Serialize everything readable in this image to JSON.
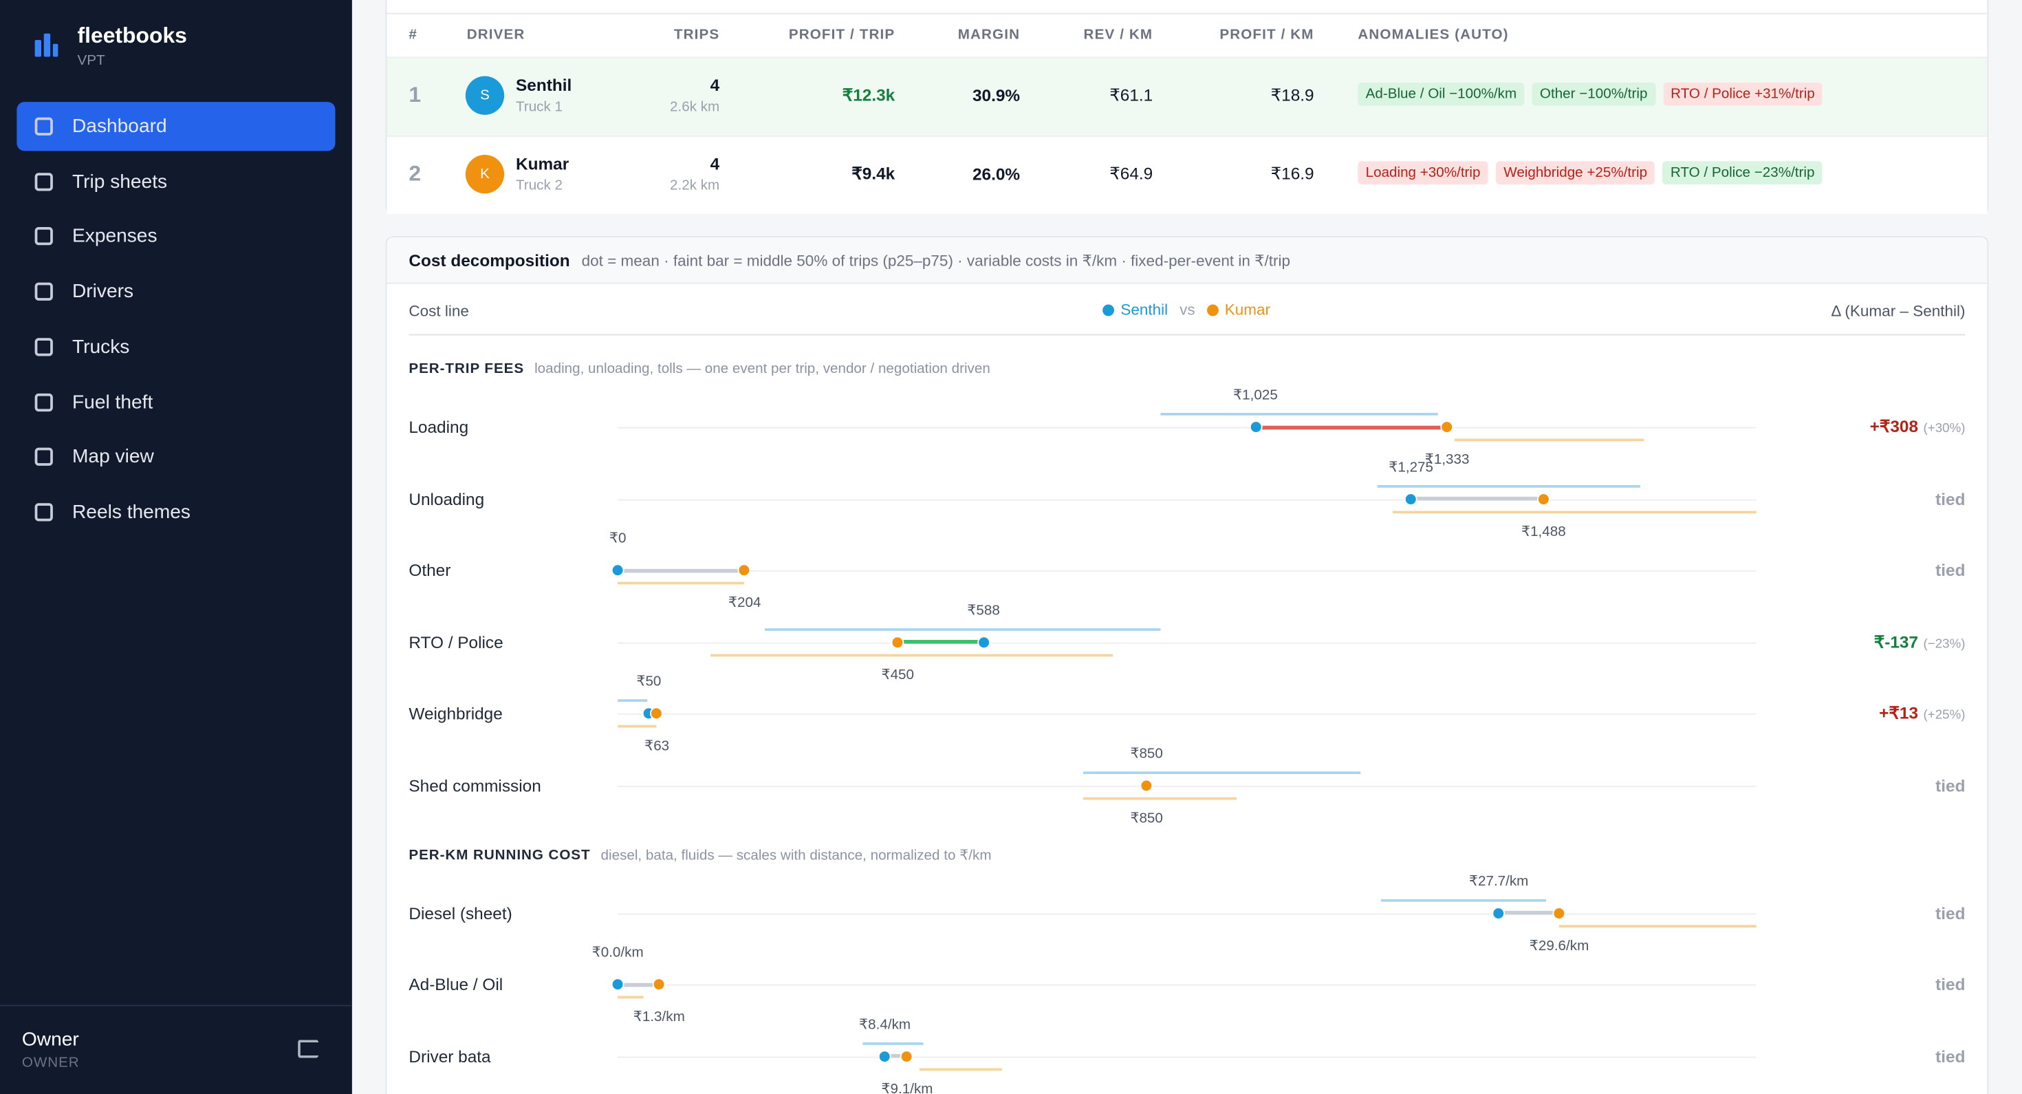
{
  "sidebar": {
    "brand": "fleetbooks",
    "org": "VPT",
    "nav": [
      "Dashboard",
      "Trip sheets",
      "Expenses",
      "Drivers",
      "Trucks",
      "Fuel theft",
      "Map view",
      "Reels themes"
    ],
    "active": 0,
    "user": {
      "name": "Owner",
      "role": "OWNER"
    }
  },
  "table": {
    "columns": [
      "#",
      "DRIVER",
      "TRIPS",
      "PROFIT / TRIP",
      "MARGIN",
      "REV / KM",
      "PROFIT / KM",
      "ANOMALIES (AUTO)"
    ],
    "rows": [
      {
        "rank": 1,
        "initial": "S",
        "avatar_color": "#1a9ad8",
        "name": "Senthil",
        "truck": "Truck 1",
        "trips": 4,
        "distance": "2.6k km",
        "profit_trip": "₹12.3k",
        "profit_color": "#15803d",
        "margin": "30.9%",
        "rev_km": "₹61.1",
        "profit_km": "₹18.9",
        "highlight": true,
        "anomalies": [
          {
            "text": "Ad-Blue / Oil −100%/km",
            "tone": "good"
          },
          {
            "text": "Other −100%/trip",
            "tone": "good"
          },
          {
            "text": "RTO / Police +31%/trip",
            "tone": "bad"
          }
        ]
      },
      {
        "rank": 2,
        "initial": "K",
        "avatar_color": "#f0920f",
        "name": "Kumar",
        "truck": "Truck 2",
        "trips": 4,
        "distance": "2.2k km",
        "profit_trip": "₹9.4k",
        "profit_color": "#111827",
        "margin": "26.0%",
        "rev_km": "₹64.9",
        "profit_km": "₹16.9",
        "highlight": false,
        "anomalies": [
          {
            "text": "Loading +30%/trip",
            "tone": "bad"
          },
          {
            "text": "Weighbridge +25%/trip",
            "tone": "bad"
          },
          {
            "text": "RTO / Police −23%/trip",
            "tone": "good"
          }
        ]
      }
    ]
  },
  "cost": {
    "title": "Cost decomposition",
    "note": "dot = mean · faint bar = middle 50% of trips (p25–p75) · variable costs in ₹/km · fixed-per-event in ₹/trip",
    "column_label": "Cost line",
    "legend": [
      {
        "name": "Senthil",
        "color": "#1a9ad8"
      },
      {
        "name": "Kumar",
        "color": "#f0920f"
      }
    ],
    "legend_sep": "vs",
    "delta_label": "Δ (Kumar – Senthil)",
    "sections": [
      {
        "title": "PER-TRIP FEES",
        "desc": "loading, unloading, tolls — one event per trip, vendor / negotiation driven",
        "xlim": [
          0,
          1830
        ],
        "rows": [
          {
            "name": "Loading",
            "a": {
              "value": 1025,
              "label": "₹1,025",
              "p25": 873,
              "p75": 1318
            },
            "b": {
              "value": 1333,
              "label": "₹1,333",
              "p25": 1345,
              "p75": 1650
            },
            "delta": "+₹308",
            "delta_pct": "(+30%)",
            "tone": "bad"
          },
          {
            "name": "Unloading",
            "a": {
              "value": 1275,
              "label": "₹1,275",
              "p25": 1221,
              "p75": 1643
            },
            "b": {
              "value": 1488,
              "label": "₹1,488",
              "p25": 1246,
              "p75": 1830
            },
            "delta": "tied",
            "tone": "tied"
          },
          {
            "name": "Other",
            "a": {
              "value": 0,
              "label": "₹0",
              "p25": 0,
              "p75": 0
            },
            "b": {
              "value": 204,
              "label": "₹204",
              "p25": 0,
              "p75": 204
            },
            "delta": "tied",
            "tone": "tied"
          },
          {
            "name": "RTO / Police",
            "a": {
              "value": 588,
              "label": "₹588",
              "p25": 236,
              "p75": 873
            },
            "b": {
              "value": 450,
              "label": "₹450",
              "p25": 149,
              "p75": 796
            },
            "delta": "₹-137",
            "delta_pct": "(−23%)",
            "tone": "good"
          },
          {
            "name": "Weighbridge",
            "a": {
              "value": 50,
              "label": "₹50",
              "p25": 0,
              "p75": 48
            },
            "b": {
              "value": 63,
              "label": "₹63",
              "p25": 0,
              "p75": 62
            },
            "delta": "+₹13",
            "delta_pct": "(+25%)",
            "tone": "bad"
          },
          {
            "name": "Shed commission",
            "a": {
              "value": 850,
              "label": "₹850",
              "p25": 748,
              "p75": 1194
            },
            "b": {
              "value": 850,
              "label": "₹850",
              "p25": 748,
              "p75": 995
            },
            "delta": "tied",
            "tone": "tied"
          }
        ]
      },
      {
        "title": "PER-KM RUNNING COST",
        "desc": "diesel, bata, fluids — scales with distance, normalized to ₹/km",
        "xlim": [
          0,
          35.8
        ],
        "rows": [
          {
            "name": "Diesel (sheet)",
            "a": {
              "value": 27.7,
              "label": "₹27.7/km",
              "p25": 24.0,
              "p75": 29.2
            },
            "b": {
              "value": 29.6,
              "label": "₹29.6/km",
              "p25": 29.6,
              "p75": 35.8
            },
            "delta": "tied",
            "tone": "tied"
          },
          {
            "name": "Ad-Blue / Oil",
            "a": {
              "value": 0.0,
              "label": "₹0.0/km",
              "p25": 0,
              "p75": 0
            },
            "b": {
              "value": 1.3,
              "label": "₹1.3/km",
              "p25": 0,
              "p75": 0.8
            },
            "delta": "tied",
            "tone": "tied"
          },
          {
            "name": "Driver bata",
            "a": {
              "value": 8.4,
              "label": "₹8.4/km",
              "p25": 7.7,
              "p75": 9.6
            },
            "b": {
              "value": 9.1,
              "label": "₹9.1/km",
              "p25": 9.5,
              "p75": 12.1
            },
            "delta": "tied",
            "tone": "tied"
          }
        ]
      }
    ]
  }
}
